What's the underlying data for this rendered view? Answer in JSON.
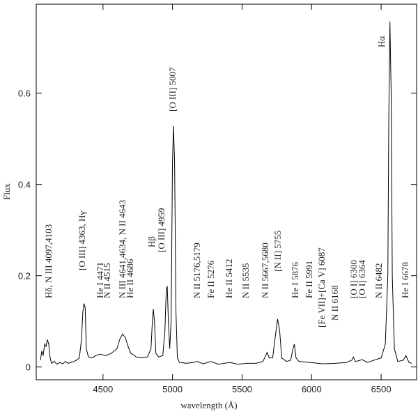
{
  "chart_data": {
    "type": "line",
    "color": "#000000",
    "x_label": "wavelength (Å)",
    "y_label": "Flux",
    "xlim": [
      4020,
      6755
    ],
    "ylim": [
      -0.028,
      0.795
    ],
    "xticks": [
      4500,
      5000,
      5500,
      6000,
      6500
    ],
    "yticks": [
      0,
      0.2,
      0.4,
      0.6
    ],
    "x": [
      4050,
      4060,
      4070,
      4080,
      4090,
      4100,
      4110,
      4120,
      4130,
      4150,
      4170,
      4190,
      4210,
      4230,
      4250,
      4270,
      4290,
      4310,
      4330,
      4345,
      4355,
      4363,
      4372,
      4380,
      4395,
      4420,
      4450,
      4480,
      4520,
      4560,
      4600,
      4620,
      4640,
      4660,
      4680,
      4700,
      4740,
      4780,
      4820,
      4845,
      4855,
      4862,
      4870,
      4880,
      4900,
      4930,
      4945,
      4955,
      4962,
      4970,
      4980,
      4990,
      5000,
      5007,
      5015,
      5025,
      5035,
      5050,
      5100,
      5150,
      5180,
      5220,
      5276,
      5330,
      5412,
      5470,
      5535,
      5600,
      5650,
      5670,
      5680,
      5695,
      5720,
      5740,
      5755,
      5770,
      5785,
      5820,
      5850,
      5866,
      5876,
      5888,
      5910,
      5990,
      6080,
      6170,
      6250,
      6290,
      6300,
      6315,
      6364,
      6400,
      6450,
      6500,
      6530,
      6548,
      6555,
      6563,
      6572,
      6580,
      6595,
      6620,
      6660,
      6678,
      6700,
      6720
    ],
    "values": [
      0.015,
      0.035,
      0.025,
      0.05,
      0.045,
      0.06,
      0.05,
      0.02,
      0.008,
      0.012,
      0.006,
      0.01,
      0.007,
      0.012,
      0.008,
      0.01,
      0.012,
      0.015,
      0.02,
      0.06,
      0.12,
      0.139,
      0.13,
      0.04,
      0.022,
      0.02,
      0.025,
      0.028,
      0.025,
      0.03,
      0.04,
      0.06,
      0.072,
      0.065,
      0.045,
      0.03,
      0.022,
      0.02,
      0.022,
      0.04,
      0.1,
      0.127,
      0.1,
      0.03,
      0.022,
      0.025,
      0.08,
      0.17,
      0.177,
      0.1,
      0.04,
      0.1,
      0.45,
      0.528,
      0.45,
      0.12,
      0.02,
      0.01,
      0.008,
      0.01,
      0.012,
      0.007,
      0.012,
      0.006,
      0.01,
      0.006,
      0.008,
      0.008,
      0.012,
      0.025,
      0.032,
      0.02,
      0.02,
      0.07,
      0.105,
      0.08,
      0.02,
      0.012,
      0.015,
      0.04,
      0.05,
      0.02,
      0.012,
      0.01,
      0.007,
      0.008,
      0.01,
      0.015,
      0.022,
      0.012,
      0.016,
      0.01,
      0.015,
      0.02,
      0.05,
      0.2,
      0.55,
      0.757,
      0.6,
      0.2,
      0.04,
      0.012,
      0.015,
      0.025,
      0.01,
      0.008
    ],
    "annotations": [
      "Hδ, N III 4097,4103",
      "[O III] 4363, Hγ",
      "He I 4471",
      "N II 4515",
      "N III 4641,4634, N II 4643",
      "He II 4686",
      "Hβ",
      "[O III] 4959",
      "[O III] 5007",
      "N II 5176,5179",
      "Fe II 5276",
      "He II 5412",
      "N II 5535",
      "N II 5667,5680",
      "[N II] 5755",
      "He I 5876",
      "Fe II 5991",
      "[Fe VII]+[Ca V] 6087",
      "N II 6168",
      "[O I] 6300",
      "[O I] 6364",
      "N II 6482",
      "Hα",
      "He I 6678"
    ]
  }
}
